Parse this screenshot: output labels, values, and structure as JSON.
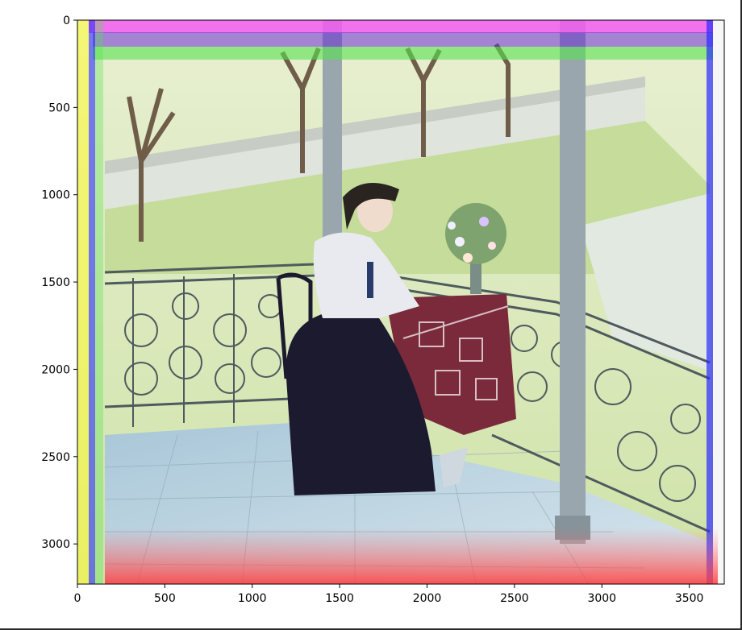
{
  "figure": {
    "image_description_icon": "photo-icon",
    "x_ticks": [
      "0",
      "500",
      "1000",
      "1500",
      "2000",
      "2500",
      "3000",
      "3500"
    ],
    "y_ticks": [
      "0",
      "500",
      "1000",
      "1500",
      "2000",
      "2500",
      "3000"
    ],
    "x_range": [
      0,
      3700
    ],
    "y_range": [
      3230,
      0
    ]
  },
  "colors": {
    "axis": "#000000",
    "sky_grass": "#cfe3a8",
    "floor": "#b8d4e0",
    "dress": "#1c1a2e",
    "tablecloth": "#7a2a3a",
    "column": "#9aa6ad",
    "magenta_band": "#f25cf2",
    "red_band": "#ff4040"
  }
}
